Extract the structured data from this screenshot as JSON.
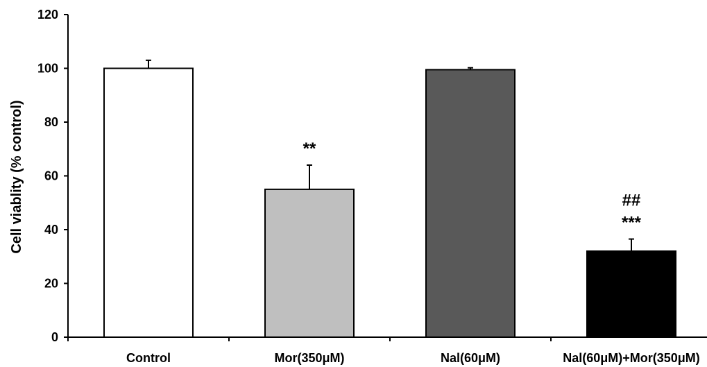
{
  "chart_data": {
    "type": "bar",
    "title": "",
    "xlabel": "",
    "ylabel": "Cell viablity (% control)",
    "ylim": [
      0,
      120
    ],
    "yticks": [
      0,
      20,
      40,
      60,
      80,
      100,
      120
    ],
    "grid": false,
    "categories": [
      "Control",
      "Mor(350μM)",
      "Nal(60μM)",
      "Nal(60μM)+Mor(350μM)"
    ],
    "values": [
      100,
      55,
      99.5,
      32
    ],
    "errors": [
      3,
      9,
      0.7,
      4.5
    ],
    "bar_colors": [
      "#ffffff",
      "#bfbfbf",
      "#595959",
      "#000000"
    ],
    "annotations": [
      {
        "category": "Mor(350μM)",
        "lines": [
          "**"
        ]
      },
      {
        "category": "Nal(60μM)+Mor(350μM)",
        "lines": [
          "##",
          "***"
        ]
      }
    ]
  }
}
